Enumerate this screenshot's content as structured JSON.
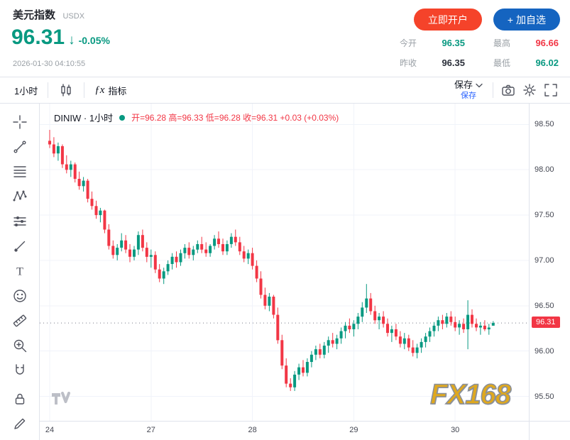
{
  "colors": {
    "green": "#089981",
    "red": "#f23645",
    "dark": "#2a2e39",
    "cta_red": "#f5432a",
    "cta_blue": "#1564c0",
    "link_blue": "#2962ff"
  },
  "header": {
    "title": "美元指数",
    "symbol_code": "USDX",
    "price": "96.31",
    "arrow": "↓",
    "change_percent": "-0.05%",
    "timestamp": "2026-01-30 04:10:55",
    "open_account": "立即开户",
    "add_watchlist": "+ 加自选",
    "stats": [
      {
        "label": "今开",
        "value": "96.35",
        "color": "green"
      },
      {
        "label": "最高",
        "value": "96.66",
        "color": "red"
      },
      {
        "label": "昨收",
        "value": "96.35",
        "color": "dark"
      },
      {
        "label": "最低",
        "value": "96.02",
        "color": "green"
      }
    ]
  },
  "toolbar": {
    "interval": "1小时",
    "fx_glyph": "ƒx",
    "indicators": "指标",
    "save": "保存",
    "save_link": "保存"
  },
  "legend": {
    "symbol": "DINIW · 1小时",
    "ohlc": "开=96.28 高=96.33 低=96.28 收=96.31 +0.03 (+0.03%)"
  },
  "chart": {
    "price_label": "96.31"
  },
  "watermark": "FX168",
  "tools": [
    "crosshair",
    "trend-line",
    "fib-retracement",
    "xabcd-pattern",
    "position-tool",
    "brush",
    "text",
    "emoji",
    "measure",
    "zoom-in",
    "magnet",
    "lock",
    "edit-pencil"
  ],
  "chart_data": {
    "type": "candlestick",
    "title": "美元指数 (USDX / DINIW) 1小时",
    "x_labels": [
      "24",
      "27",
      "28",
      "29",
      "30"
    ],
    "day_start_indices": [
      0,
      24,
      48,
      72,
      96
    ],
    "y_ticks": [
      98.5,
      98.0,
      97.5,
      97.0,
      96.5,
      96.0,
      95.5
    ],
    "ylim": [
      95.23,
      98.73
    ],
    "current_price": 96.31,
    "up_color": "#089981",
    "down_color": "#f23645",
    "grid": true,
    "candles": [
      [
        98.32,
        98.44,
        98.24,
        98.28
      ],
      [
        98.28,
        98.36,
        98.14,
        98.18
      ],
      [
        98.18,
        98.3,
        98.1,
        98.26
      ],
      [
        98.26,
        98.28,
        98.02,
        98.06
      ],
      [
        98.06,
        98.16,
        97.96,
        98.0
      ],
      [
        98.0,
        98.1,
        97.92,
        98.06
      ],
      [
        98.06,
        98.08,
        97.86,
        97.9
      ],
      [
        97.9,
        97.98,
        97.78,
        97.82
      ],
      [
        97.82,
        97.92,
        97.76,
        97.88
      ],
      [
        97.88,
        97.9,
        97.64,
        97.68
      ],
      [
        97.68,
        97.76,
        97.56,
        97.6
      ],
      [
        97.6,
        97.66,
        97.46,
        97.5
      ],
      [
        97.5,
        97.58,
        97.42,
        97.55
      ],
      [
        97.55,
        97.56,
        97.3,
        97.34
      ],
      [
        97.34,
        97.4,
        97.12,
        97.16
      ],
      [
        97.16,
        97.22,
        97.02,
        97.06
      ],
      [
        97.06,
        97.18,
        97.0,
        97.14
      ],
      [
        97.14,
        97.3,
        97.1,
        97.22
      ],
      [
        97.22,
        97.28,
        97.08,
        97.12
      ],
      [
        97.12,
        97.18,
        96.98,
        97.04
      ],
      [
        97.04,
        97.16,
        97.0,
        97.12
      ],
      [
        97.12,
        97.32,
        97.06,
        97.28
      ],
      [
        97.28,
        97.34,
        97.1,
        97.14
      ],
      [
        97.14,
        97.2,
        96.98,
        97.04
      ],
      [
        97.04,
        97.12,
        96.92,
        97.06
      ],
      [
        97.06,
        97.1,
        96.86,
        96.9
      ],
      [
        96.9,
        96.96,
        96.76,
        96.8
      ],
      [
        96.8,
        96.92,
        96.74,
        96.88
      ],
      [
        96.88,
        97.0,
        96.84,
        96.96
      ],
      [
        96.96,
        97.08,
        96.9,
        97.04
      ],
      [
        97.04,
        97.1,
        96.92,
        96.98
      ],
      [
        96.98,
        97.12,
        96.94,
        97.08
      ],
      [
        97.08,
        97.18,
        97.02,
        97.14
      ],
      [
        97.14,
        97.2,
        97.02,
        97.06
      ],
      [
        97.06,
        97.16,
        97.0,
        97.12
      ],
      [
        97.12,
        97.22,
        97.08,
        97.18
      ],
      [
        97.18,
        97.26,
        97.08,
        97.12
      ],
      [
        97.12,
        97.2,
        97.04,
        97.08
      ],
      [
        97.08,
        97.18,
        97.04,
        97.16
      ],
      [
        97.16,
        97.28,
        97.12,
        97.24
      ],
      [
        97.24,
        97.32,
        97.14,
        97.18
      ],
      [
        97.18,
        97.24,
        97.06,
        97.1
      ],
      [
        97.1,
        97.22,
        97.06,
        97.18
      ],
      [
        97.18,
        97.3,
        97.14,
        97.26
      ],
      [
        97.26,
        97.34,
        97.16,
        97.2
      ],
      [
        97.2,
        97.26,
        97.06,
        97.1
      ],
      [
        97.1,
        97.16,
        96.98,
        97.02
      ],
      [
        97.02,
        97.12,
        96.96,
        97.08
      ],
      [
        97.08,
        97.14,
        96.9,
        96.94
      ],
      [
        96.94,
        97.0,
        96.76,
        96.8
      ],
      [
        96.8,
        96.88,
        96.58,
        96.62
      ],
      [
        96.62,
        96.7,
        96.46,
        96.5
      ],
      [
        96.5,
        96.64,
        96.44,
        96.6
      ],
      [
        96.6,
        96.62,
        96.36,
        96.4
      ],
      [
        96.4,
        96.48,
        96.08,
        96.12
      ],
      [
        96.12,
        96.18,
        95.8,
        95.84
      ],
      [
        95.84,
        95.92,
        95.6,
        95.64
      ],
      [
        95.64,
        95.7,
        95.56,
        95.6
      ],
      [
        95.6,
        95.78,
        95.56,
        95.74
      ],
      [
        95.74,
        95.86,
        95.68,
        95.82
      ],
      [
        95.82,
        95.9,
        95.72,
        95.76
      ],
      [
        95.76,
        95.92,
        95.72,
        95.88
      ],
      [
        95.88,
        96.0,
        95.82,
        95.96
      ],
      [
        95.96,
        96.06,
        95.9,
        96.02
      ],
      [
        96.02,
        96.08,
        95.92,
        95.96
      ],
      [
        95.96,
        96.1,
        95.92,
        96.06
      ],
      [
        96.06,
        96.16,
        95.98,
        96.12
      ],
      [
        96.12,
        96.2,
        96.04,
        96.08
      ],
      [
        96.08,
        96.18,
        96.02,
        96.14
      ],
      [
        96.14,
        96.26,
        96.08,
        96.22
      ],
      [
        96.22,
        96.32,
        96.14,
        96.28
      ],
      [
        96.28,
        96.36,
        96.2,
        96.24
      ],
      [
        96.24,
        96.34,
        96.16,
        96.3
      ],
      [
        96.3,
        96.42,
        96.24,
        96.38
      ],
      [
        96.38,
        96.54,
        96.32,
        96.48
      ],
      [
        96.48,
        96.74,
        96.42,
        96.58
      ],
      [
        96.58,
        96.64,
        96.4,
        96.44
      ],
      [
        96.44,
        96.5,
        96.3,
        96.34
      ],
      [
        96.34,
        96.42,
        96.24,
        96.38
      ],
      [
        96.38,
        96.44,
        96.26,
        96.3
      ],
      [
        96.3,
        96.36,
        96.16,
        96.2
      ],
      [
        96.2,
        96.28,
        96.1,
        96.24
      ],
      [
        96.24,
        96.3,
        96.12,
        96.16
      ],
      [
        96.16,
        96.22,
        96.04,
        96.08
      ],
      [
        96.08,
        96.2,
        96.02,
        96.14
      ],
      [
        96.14,
        96.18,
        96.0,
        96.04
      ],
      [
        96.04,
        96.12,
        95.94,
        95.98
      ],
      [
        95.98,
        96.08,
        95.92,
        96.04
      ],
      [
        96.04,
        96.14,
        95.98,
        96.1
      ],
      [
        96.1,
        96.2,
        96.04,
        96.16
      ],
      [
        96.16,
        96.26,
        96.1,
        96.22
      ],
      [
        96.22,
        96.32,
        96.16,
        96.28
      ],
      [
        96.28,
        96.38,
        96.22,
        96.34
      ],
      [
        96.34,
        96.4,
        96.24,
        96.3
      ],
      [
        96.3,
        96.42,
        96.26,
        96.38
      ],
      [
        96.38,
        96.44,
        96.28,
        96.32
      ],
      [
        96.32,
        96.38,
        96.22,
        96.26
      ],
      [
        96.26,
        96.34,
        96.18,
        96.3
      ],
      [
        96.3,
        96.36,
        96.2,
        96.24
      ],
      [
        96.24,
        96.56,
        96.02,
        96.4
      ],
      [
        96.4,
        96.46,
        96.26,
        96.3
      ],
      [
        96.3,
        96.36,
        96.22,
        96.26
      ],
      [
        96.26,
        96.32,
        96.18,
        96.28
      ],
      [
        96.28,
        96.34,
        96.22,
        96.24
      ],
      [
        96.24,
        96.3,
        96.18,
        96.26
      ],
      [
        96.28,
        96.33,
        96.28,
        96.31
      ]
    ]
  }
}
